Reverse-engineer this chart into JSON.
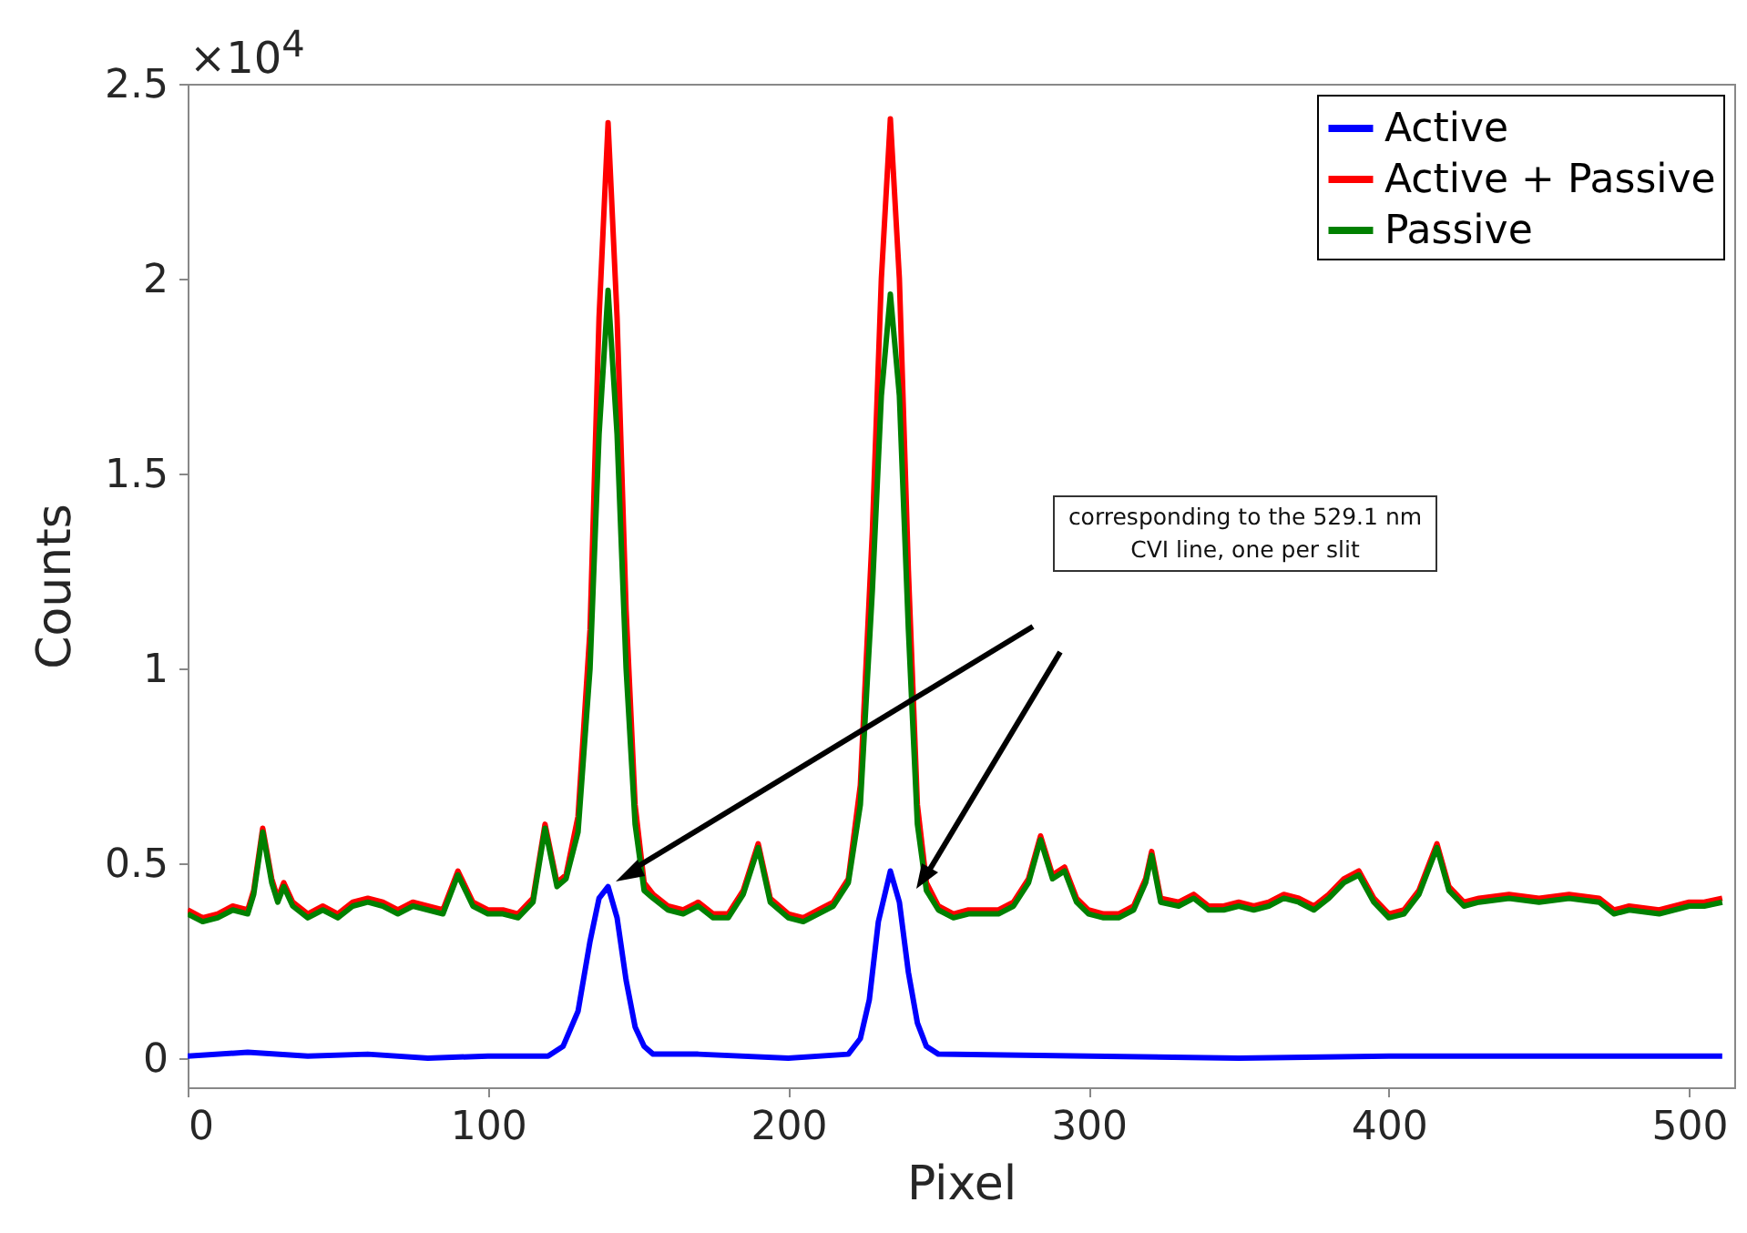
{
  "chart_data": {
    "type": "line",
    "xlabel": "Pixel",
    "ylabel": "Counts",
    "xlim": [
      0,
      515
    ],
    "xticks": [
      0,
      100,
      200,
      300,
      400,
      500
    ],
    "ylim": [
      -0.075,
      2.5
    ],
    "yticks": [
      0,
      0.5,
      1,
      1.5,
      2,
      2.5
    ],
    "annotations": [
      "×10$^{4}$",
      "corresponding to the 529.1 nm CVI line, one per slit"
    ],
    "legend": "top right",
    "grid": false,
    "line_style": "solid",
    "series": [
      {
        "name": "Active",
        "color": "#0000ff",
        "x": [
          0,
          20,
          40,
          60,
          80,
          100,
          120,
          125,
          130,
          134,
          137,
          140,
          143,
          146,
          149,
          152,
          155,
          170,
          200,
          220,
          224,
          227,
          230,
          234,
          237,
          240,
          243,
          246,
          250,
          300,
          350,
          400,
          450,
          511
        ],
        "values": [
          0.005,
          0.015,
          0.005,
          0.01,
          0,
          0.005,
          0.005,
          0.03,
          0.12,
          0.3,
          0.41,
          0.44,
          0.36,
          0.2,
          0.08,
          0.03,
          0.01,
          0.01,
          0,
          0.01,
          0.05,
          0.15,
          0.35,
          0.48,
          0.4,
          0.22,
          0.09,
          0.03,
          0.01,
          0.005,
          0,
          0.005,
          0.005,
          0.005
        ]
      },
      {
        "name": "Active + Passive",
        "color": "#ff0000",
        "x": [
          0,
          5,
          10,
          15,
          20,
          22,
          25,
          28,
          30,
          32,
          35,
          40,
          45,
          50,
          55,
          60,
          65,
          70,
          75,
          80,
          85,
          90,
          95,
          100,
          105,
          110,
          115,
          119,
          123,
          126,
          130,
          134,
          137,
          140,
          143,
          146,
          149,
          152,
          155,
          160,
          165,
          170,
          175,
          180,
          185,
          190,
          194,
          200,
          205,
          210,
          215,
          220,
          224,
          228,
          231,
          234,
          237,
          240,
          243,
          246,
          250,
          255,
          260,
          265,
          270,
          275,
          280,
          284,
          288,
          292,
          296,
          300,
          305,
          310,
          315,
          319,
          321,
          324,
          330,
          335,
          340,
          345,
          350,
          355,
          360,
          365,
          370,
          375,
          380,
          385,
          390,
          395,
          400,
          405,
          410,
          413,
          416,
          420,
          425,
          430,
          440,
          450,
          460,
          470,
          475,
          480,
          490,
          500,
          505,
          511
        ],
        "values": [
          0.38,
          0.36,
          0.37,
          0.39,
          0.38,
          0.43,
          0.59,
          0.46,
          0.41,
          0.45,
          0.4,
          0.37,
          0.39,
          0.37,
          0.4,
          0.41,
          0.4,
          0.38,
          0.4,
          0.39,
          0.38,
          0.48,
          0.4,
          0.38,
          0.38,
          0.37,
          0.41,
          0.6,
          0.45,
          0.47,
          0.62,
          1.1,
          1.9,
          2.4,
          1.9,
          1.15,
          0.65,
          0.45,
          0.42,
          0.39,
          0.38,
          0.4,
          0.37,
          0.37,
          0.43,
          0.55,
          0.41,
          0.37,
          0.36,
          0.38,
          0.4,
          0.46,
          0.7,
          1.35,
          2,
          2.41,
          2,
          1.25,
          0.65,
          0.45,
          0.39,
          0.37,
          0.38,
          0.38,
          0.38,
          0.4,
          0.46,
          0.57,
          0.47,
          0.49,
          0.41,
          0.38,
          0.37,
          0.37,
          0.39,
          0.46,
          0.53,
          0.41,
          0.4,
          0.42,
          0.39,
          0.39,
          0.4,
          0.39,
          0.4,
          0.42,
          0.41,
          0.39,
          0.42,
          0.46,
          0.48,
          0.41,
          0.37,
          0.38,
          0.43,
          0.49,
          0.55,
          0.44,
          0.4,
          0.41,
          0.42,
          0.41,
          0.42,
          0.41,
          0.38,
          0.39,
          0.38,
          0.4,
          0.4,
          0.41
        ]
      },
      {
        "name": "Passive",
        "color": "#008000",
        "x": [
          0,
          5,
          10,
          15,
          20,
          22,
          25,
          28,
          30,
          32,
          35,
          40,
          45,
          50,
          55,
          60,
          65,
          70,
          75,
          80,
          85,
          90,
          95,
          100,
          105,
          110,
          115,
          119,
          123,
          126,
          130,
          134,
          137,
          140,
          143,
          146,
          149,
          152,
          155,
          160,
          165,
          170,
          175,
          180,
          185,
          190,
          194,
          200,
          205,
          210,
          215,
          220,
          224,
          228,
          231,
          234,
          237,
          240,
          243,
          246,
          250,
          255,
          260,
          265,
          270,
          275,
          280,
          284,
          288,
          292,
          296,
          300,
          305,
          310,
          315,
          319,
          321,
          324,
          330,
          335,
          340,
          345,
          350,
          355,
          360,
          365,
          370,
          375,
          380,
          385,
          390,
          395,
          400,
          405,
          410,
          413,
          416,
          420,
          425,
          430,
          440,
          450,
          460,
          470,
          475,
          480,
          490,
          500,
          505,
          511
        ],
        "values": [
          0.37,
          0.35,
          0.36,
          0.38,
          0.37,
          0.42,
          0.58,
          0.45,
          0.4,
          0.44,
          0.39,
          0.36,
          0.38,
          0.36,
          0.39,
          0.4,
          0.39,
          0.37,
          0.39,
          0.38,
          0.37,
          0.47,
          0.39,
          0.37,
          0.37,
          0.36,
          0.4,
          0.59,
          0.44,
          0.46,
          0.58,
          1,
          1.6,
          1.97,
          1.6,
          1,
          0.6,
          0.43,
          0.41,
          0.38,
          0.37,
          0.39,
          0.36,
          0.36,
          0.42,
          0.54,
          0.4,
          0.36,
          0.35,
          0.37,
          0.39,
          0.45,
          0.65,
          1.2,
          1.7,
          1.96,
          1.7,
          1.1,
          0.6,
          0.43,
          0.38,
          0.36,
          0.37,
          0.37,
          0.37,
          0.39,
          0.45,
          0.56,
          0.46,
          0.48,
          0.4,
          0.37,
          0.36,
          0.36,
          0.38,
          0.45,
          0.52,
          0.4,
          0.39,
          0.41,
          0.38,
          0.38,
          0.39,
          0.38,
          0.39,
          0.41,
          0.4,
          0.38,
          0.41,
          0.45,
          0.47,
          0.4,
          0.36,
          0.37,
          0.42,
          0.48,
          0.54,
          0.43,
          0.39,
          0.4,
          0.41,
          0.4,
          0.41,
          0.4,
          0.37,
          0.38,
          0.37,
          0.39,
          0.39,
          0.4
        ]
      }
    ]
  }
}
